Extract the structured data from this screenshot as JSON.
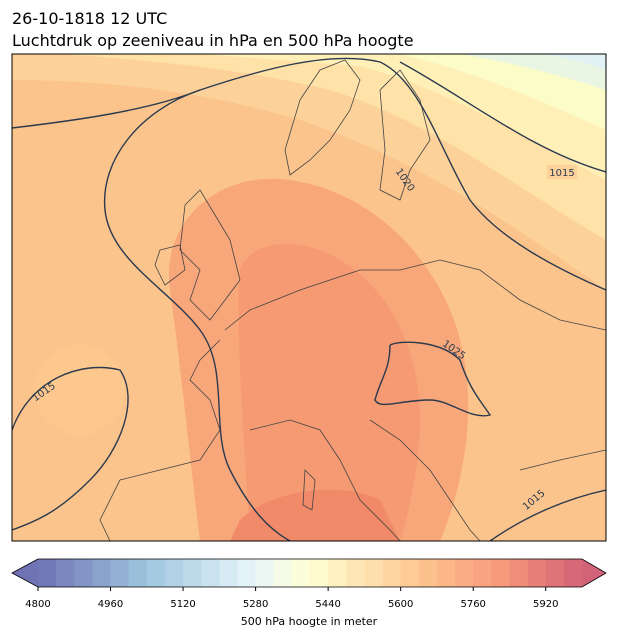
{
  "title": "26-10-1818 12 UTC",
  "subtitle": "Luchtdruk op zeeniveau in hPa en 500 hPa hoogte",
  "isobar_labels": [
    1015,
    1020,
    1025,
    1015,
    1015
  ],
  "colorbar": {
    "min": 4800,
    "max": 6000,
    "step": 40,
    "ticks": [
      4800,
      4960,
      5120,
      5280,
      5440,
      5600,
      5760,
      5920
    ],
    "label": "500 hPa hoogte in meter"
  }
}
